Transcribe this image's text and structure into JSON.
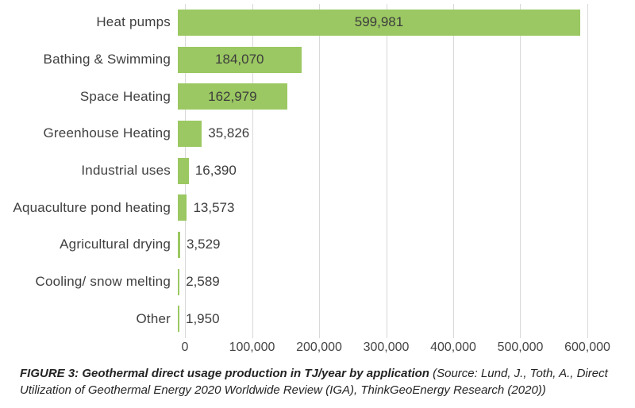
{
  "chart_data": {
    "type": "bar",
    "orientation": "horizontal",
    "title": "",
    "xlabel": "",
    "ylabel": "",
    "categories": [
      "Heat pumps",
      "Bathing & Swimming",
      "Space Heating",
      "Greenhouse Heating",
      "Industrial uses",
      "Aquaculture pond heating",
      "Agricultural drying",
      "Cooling/ snow melting",
      "Other"
    ],
    "values": [
      599981,
      184070,
      162979,
      35826,
      16390,
      13573,
      3529,
      2589,
      1950
    ],
    "value_labels": [
      "599,981",
      "184,070",
      "162,979",
      "35,826",
      "16,390",
      "13,573",
      "3,529",
      "2,589",
      "1,950"
    ],
    "unit": "TJ/year",
    "xlim": [
      0,
      600000
    ],
    "x_tick_labels": [
      "0",
      "100,000",
      "200,000",
      "300,000",
      "400,000",
      "500,000",
      "600,000"
    ],
    "grid": "vertical-gridlines-on",
    "legend": "none",
    "bar_color": "#9bc862",
    "gridline_color": "#d9d9d9"
  },
  "caption": {
    "title": "FIGURE 3: Geothermal direct usage production in TJ/year by application",
    "source": "(Source: Lund, J., Toth, A., Direct Utilization of Geothermal Energy 2020 Worldwide Review (IGA), ThinkGeoEnergy Research (2020))"
  }
}
